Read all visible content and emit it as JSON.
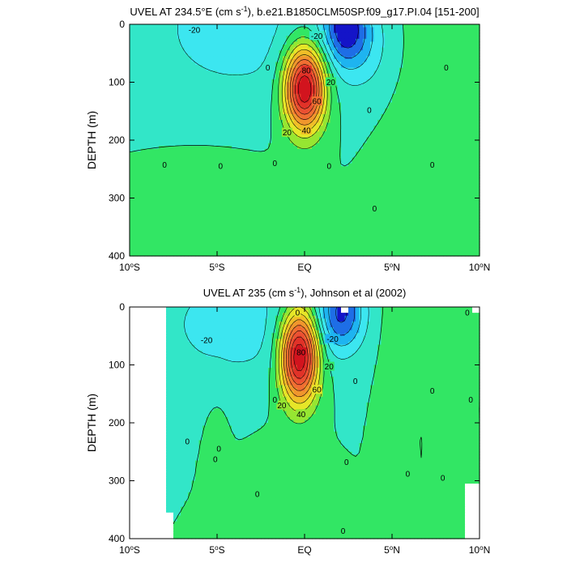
{
  "chart_data": [
    {
      "type": "heatmap",
      "title_main": "UVEL AT 234.5°E (cm s",
      "title_sup": "-1",
      "title_rest": "), b.e21.B1850CLM50SP.f09_g17.PI.04 [151-200]",
      "ylabel": "DEPTH (m)",
      "xlim": [
        -10,
        10
      ],
      "ylim": [
        0,
        400
      ],
      "y_inverted": true,
      "x_ticks": [
        {
          "value": -10,
          "num": "10",
          "deg": "o",
          "hemi": "S"
        },
        {
          "value": -5,
          "num": "5",
          "deg": "o",
          "hemi": "S"
        },
        {
          "value": 0,
          "num": "EQ",
          "deg": "",
          "hemi": ""
        },
        {
          "value": 5,
          "num": "5",
          "deg": "o",
          "hemi": "N"
        },
        {
          "value": 10,
          "num": "10",
          "deg": "o",
          "hemi": "N"
        }
      ],
      "y_ticks": [
        0,
        100,
        200,
        300,
        400
      ],
      "contour_interval": 10,
      "missing_regions": [],
      "features": [
        {
          "lat": 0,
          "depth": 110,
          "peak": 95,
          "sx": 0.8,
          "sy": 50
        },
        {
          "lat": 2.3,
          "depth": 5,
          "peak": -40,
          "sx": 0.9,
          "sy": 45
        },
        {
          "lat": 3.5,
          "depth": 40,
          "peak": -12,
          "sx": 1.2,
          "sy": 60
        },
        {
          "lat": -4,
          "depth": 10,
          "peak": -14,
          "sx": 4.0,
          "sy": 100
        },
        {
          "lat": 6.5,
          "depth": 150,
          "peak": 4,
          "sx": 1.6,
          "sy": 250
        },
        {
          "lat": -9.8,
          "depth": 30,
          "peak": 4,
          "sx": 0.5,
          "sy": 25
        },
        {
          "lat": -5,
          "depth": 330,
          "peak": 3,
          "sx": 3.0,
          "sy": 120
        }
      ],
      "contour_labels": [
        {
          "text": "-20",
          "lat": -6.3,
          "depth": 10
        },
        {
          "text": "-20",
          "lat": 0.7,
          "depth": 20
        },
        {
          "text": "0",
          "lat": -2.1,
          "depth": 75
        },
        {
          "text": "20",
          "lat": 1.5,
          "depth": 100
        },
        {
          "text": "80",
          "lat": 0.1,
          "depth": 80
        },
        {
          "text": "60",
          "lat": 0.7,
          "depth": 133
        },
        {
          "text": "40",
          "lat": 0.1,
          "depth": 183
        },
        {
          "text": "20",
          "lat": -1,
          "depth": 187
        },
        {
          "text": "0",
          "lat": 3.7,
          "depth": 148
        },
        {
          "text": "0",
          "lat": 8.1,
          "depth": 75
        },
        {
          "text": "0",
          "lat": -8,
          "depth": 243
        },
        {
          "text": "0",
          "lat": -4.8,
          "depth": 245
        },
        {
          "text": "0",
          "lat": -1.7,
          "depth": 240
        },
        {
          "text": "0",
          "lat": 1.4,
          "depth": 245
        },
        {
          "text": "0",
          "lat": 4,
          "depth": 318
        },
        {
          "text": "0",
          "lat": 7.3,
          "depth": 243
        }
      ]
    },
    {
      "type": "heatmap",
      "title_main": "UVEL AT 235 (cm s",
      "title_sup": "-1",
      "title_rest": "), Johnson et al (2002)",
      "ylabel": "DEPTH (m)",
      "xlim": [
        -10,
        10
      ],
      "ylim": [
        0,
        400
      ],
      "y_inverted": true,
      "x_ticks": [
        {
          "value": -10,
          "num": "10",
          "deg": "o",
          "hemi": "S"
        },
        {
          "value": -5,
          "num": "5",
          "deg": "o",
          "hemi": "S"
        },
        {
          "value": 0,
          "num": "EQ",
          "deg": "",
          "hemi": ""
        },
        {
          "value": 5,
          "num": "5",
          "deg": "o",
          "hemi": "N"
        },
        {
          "value": 10,
          "num": "10",
          "deg": "o",
          "hemi": "N"
        }
      ],
      "y_ticks": [
        0,
        100,
        200,
        300,
        400
      ],
      "contour_interval": 10,
      "missing_regions": [
        {
          "lat0": -10,
          "lat1": -7.9,
          "depth0": 0,
          "depth1": 355
        },
        {
          "lat0": -10,
          "lat1": -7.4,
          "depth0": 355,
          "depth1": 400
        },
        {
          "lat0": 9.6,
          "lat1": 10,
          "depth0": 0,
          "depth1": 8
        },
        {
          "lat0": 9.1,
          "lat1": 10,
          "depth0": 305,
          "depth1": 400
        },
        {
          "lat0": 2.1,
          "lat1": 2.5,
          "depth0": 0,
          "depth1": 12
        }
      ],
      "features": [
        {
          "lat": -0.3,
          "depth": 85,
          "peak": 95,
          "sx": 0.75,
          "sy": 55
        },
        {
          "lat": 2.1,
          "depth": 10,
          "peak": -40,
          "sx": 0.9,
          "sy": 45
        },
        {
          "lat": -4,
          "depth": 30,
          "peak": -14,
          "sx": 3.5,
          "sy": 80
        },
        {
          "lat": 7.5,
          "depth": 40,
          "peak": 9,
          "sx": 0.7,
          "sy": 50
        },
        {
          "lat": 5,
          "depth": 40,
          "peak": 3,
          "sx": 0.5,
          "sy": 60
        },
        {
          "lat": 4.7,
          "depth": 220,
          "peak": 3,
          "sx": 0.5,
          "sy": 120
        },
        {
          "lat": 8.3,
          "depth": 200,
          "peak": 3,
          "sx": 0.4,
          "sy": 100
        },
        {
          "lat": -5,
          "depth": 200,
          "peak": 3,
          "sx": 0.5,
          "sy": 60
        },
        {
          "lat": -1.5,
          "depth": 320,
          "peak": 3,
          "sx": 1.5,
          "sy": 80
        }
      ],
      "contour_labels": [
        {
          "text": "-20",
          "lat": -5.6,
          "depth": 57
        },
        {
          "text": "-20",
          "lat": 1.6,
          "depth": 55
        },
        {
          "text": "0",
          "lat": -0.4,
          "depth": 10
        },
        {
          "text": "80",
          "lat": -0.2,
          "depth": 78
        },
        {
          "text": "60",
          "lat": 0.7,
          "depth": 143
        },
        {
          "text": "40",
          "lat": -0.2,
          "depth": 185
        },
        {
          "text": "20",
          "lat": 1.4,
          "depth": 103
        },
        {
          "text": "20",
          "lat": -1.3,
          "depth": 170
        },
        {
          "text": "0",
          "lat": -1.7,
          "depth": 160
        },
        {
          "text": "0",
          "lat": 2.9,
          "depth": 128
        },
        {
          "text": "0",
          "lat": 7.3,
          "depth": 145
        },
        {
          "text": "0",
          "lat": 9.5,
          "depth": 160
        },
        {
          "text": "0",
          "lat": 9.3,
          "depth": 10
        },
        {
          "text": "0",
          "lat": -6.7,
          "depth": 232
        },
        {
          "text": "0",
          "lat": -5.1,
          "depth": 263
        },
        {
          "text": "0",
          "lat": -4.9,
          "depth": 245
        },
        {
          "text": "0",
          "lat": -2.7,
          "depth": 323
        },
        {
          "text": "0",
          "lat": 2.4,
          "depth": 268
        },
        {
          "text": "0",
          "lat": 5.9,
          "depth": 288
        },
        {
          "text": "0",
          "lat": 7.9,
          "depth": 295
        },
        {
          "text": "0",
          "lat": 2.2,
          "depth": 387
        }
      ]
    }
  ],
  "colors": {
    "background": "#ffffff",
    "missing": "#ffffff",
    "contour_line": "#000000",
    "levels": [
      {
        "min": -80,
        "max": -40,
        "color": "#1414c8"
      },
      {
        "min": -40,
        "max": -30,
        "color": "#1e6ee6"
      },
      {
        "min": -30,
        "max": -20,
        "color": "#1eb4f0"
      },
      {
        "min": -20,
        "max": -10,
        "color": "#3ce6f0"
      },
      {
        "min": -10,
        "max": 0,
        "color": "#32e6c8"
      },
      {
        "min": 0,
        "max": 10,
        "color": "#32e664"
      },
      {
        "min": 10,
        "max": 20,
        "color": "#96e632"
      },
      {
        "min": 20,
        "max": 30,
        "color": "#e6e628"
      },
      {
        "min": 30,
        "max": 40,
        "color": "#f0be28"
      },
      {
        "min": 40,
        "max": 50,
        "color": "#f0962d"
      },
      {
        "min": 50,
        "max": 60,
        "color": "#f06e32"
      },
      {
        "min": 60,
        "max": 70,
        "color": "#eb5032"
      },
      {
        "min": 70,
        "max": 80,
        "color": "#e13228"
      },
      {
        "min": 80,
        "max": 200,
        "color": "#d2141e"
      }
    ]
  }
}
